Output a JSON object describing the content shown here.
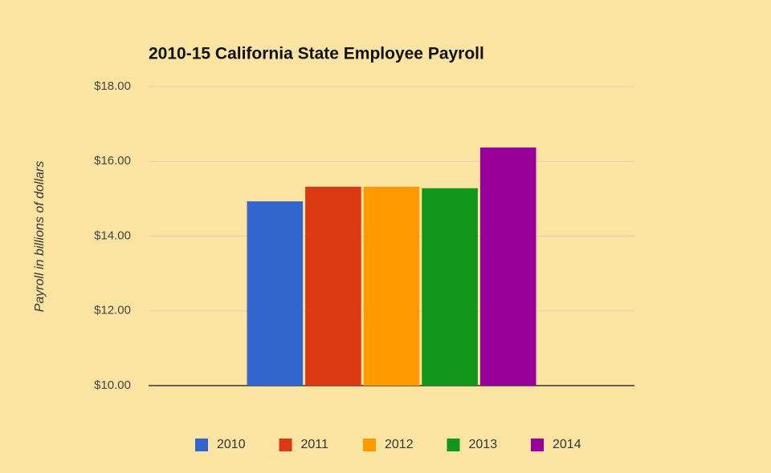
{
  "chart_data": {
    "type": "bar",
    "title": "2010-15 California State Employee Payroll",
    "y_label": "Payroll in billions of dollars",
    "categories": [
      null
    ],
    "series": [
      {
        "name": "2010",
        "color": "#3366cc",
        "values": [
          14.93
        ]
      },
      {
        "name": "2011",
        "color": "#dc3912",
        "values": [
          15.32
        ]
      },
      {
        "name": "2012",
        "color": "#ff9900",
        "values": [
          15.32
        ]
      },
      {
        "name": "2013",
        "color": "#109618",
        "values": [
          15.28
        ]
      },
      {
        "name": "2014",
        "color": "#990099",
        "values": [
          16.37
        ]
      }
    ],
    "ylim": [
      10,
      18
    ],
    "yticks": [
      {
        "value": 10,
        "label": "$10.00"
      },
      {
        "value": 12,
        "label": "$12.00"
      },
      {
        "value": 14,
        "label": "$14.00"
      },
      {
        "value": 16,
        "label": "$16.00"
      },
      {
        "value": 18,
        "label": "$18.00"
      }
    ],
    "grid": true,
    "legend": "bottom"
  }
}
